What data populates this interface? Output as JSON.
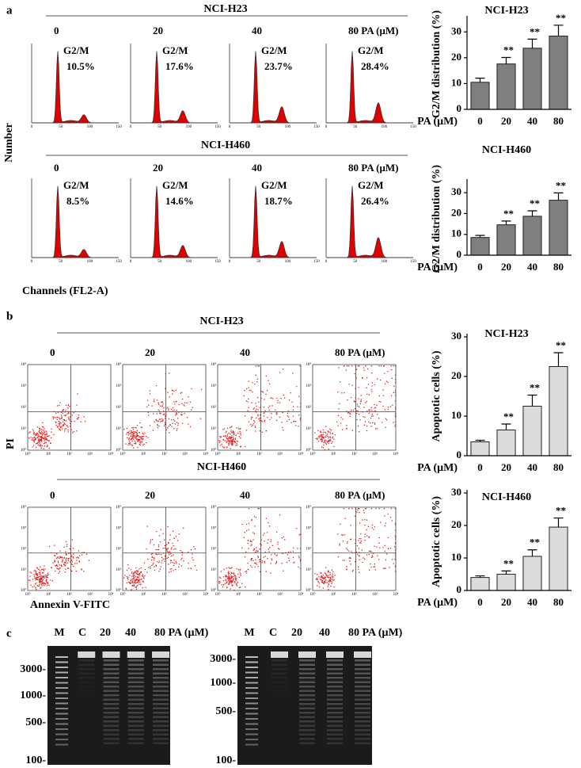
{
  "chart_data": [
    {
      "type": "bar",
      "title": "NCI-H23",
      "ylabel": "G2/M distribution (%)",
      "xlabel": "PA (μM)",
      "categories": [
        "0",
        "20",
        "40",
        "80"
      ],
      "values": [
        10.5,
        17.6,
        23.7,
        28.4
      ],
      "errors": [
        1.6,
        2.5,
        3.5,
        4.2
      ],
      "annotations": [
        null,
        "**",
        "**",
        "**"
      ],
      "color": "#7f7f7f",
      "ylim": [
        0,
        35
      ],
      "yticks": [
        0,
        10,
        20,
        30
      ]
    },
    {
      "type": "bar",
      "title": "NCI-H460",
      "ylabel": "G2/M distribution (%)",
      "xlabel": "PA (μM)",
      "categories": [
        "0",
        "20",
        "40",
        "80"
      ],
      "values": [
        8.5,
        14.6,
        18.7,
        26.4
      ],
      "errors": [
        1.0,
        1.8,
        2.6,
        3.5
      ],
      "annotations": [
        null,
        "**",
        "**",
        "**"
      ],
      "color": "#7f7f7f",
      "ylim": [
        0,
        35
      ],
      "yticks": [
        0,
        10,
        20,
        30
      ]
    },
    {
      "type": "bar",
      "title": "NCI-H23",
      "ylabel": "Apoptotic cells (%)",
      "xlabel": "PA (μM)",
      "categories": [
        "0",
        "20",
        "40",
        "80"
      ],
      "values": [
        3.5,
        6.5,
        12.5,
        22.5
      ],
      "errors": [
        0.4,
        1.5,
        2.8,
        3.5
      ],
      "annotations": [
        null,
        "**",
        "**",
        "**"
      ],
      "color": "#dcdcdc",
      "ylim": [
        0,
        30
      ],
      "yticks": [
        0,
        10,
        20,
        30
      ]
    },
    {
      "type": "bar",
      "title": "NCI-H460",
      "ylabel": "Apoptotic cells (%)",
      "xlabel": "PA (μM)",
      "categories": [
        "0",
        "20",
        "40",
        "80"
      ],
      "values": [
        4.0,
        5.0,
        10.5,
        19.5
      ],
      "errors": [
        0.5,
        1.0,
        2.0,
        2.8
      ],
      "annotations": [
        null,
        "**",
        "**",
        "**"
      ],
      "color": "#dcdcdc",
      "ylim": [
        0,
        30
      ],
      "yticks": [
        0,
        10,
        20,
        30
      ]
    }
  ],
  "panel_a": {
    "label": "a",
    "y_axis_label": "Number",
    "x_axis_label": "Channels (FL2-A)",
    "histogram_ticks": [
      "0",
      "50",
      "100",
      "150"
    ],
    "groups": [
      {
        "cell_line": "NCI-H23",
        "doses": [
          "0",
          "20",
          "40",
          "80 PA (μM)"
        ],
        "peaks": [
          {
            "label": "G2/M",
            "value": "10.5%"
          },
          {
            "label": "G2/M",
            "value": "17.6%"
          },
          {
            "label": "G2/M",
            "value": "23.7%"
          },
          {
            "label": "G2/M",
            "value": "28.4%"
          }
        ]
      },
      {
        "cell_line": "NCI-H460",
        "doses": [
          "0",
          "20",
          "40",
          "80 PA (μM)"
        ],
        "peaks": [
          {
            "label": "G2/M",
            "value": "8.5%"
          },
          {
            "label": "G2/M",
            "value": "14.6%"
          },
          {
            "label": "G2/M",
            "value": "18.7%"
          },
          {
            "label": "G2/M",
            "value": "26.4%"
          }
        ]
      }
    ]
  },
  "panel_b": {
    "label": "b",
    "y_axis_label": "PI",
    "x_axis_label": "Annexin V-FITC",
    "log_ticks": [
      "10⁰",
      "10¹",
      "10²",
      "10³",
      "10⁴"
    ],
    "groups": [
      {
        "cell_line": "NCI-H23",
        "doses": [
          "0",
          "20",
          "40",
          "80 PA (μM)"
        ]
      },
      {
        "cell_line": "NCI-H460",
        "doses": [
          "0",
          "20",
          "40",
          "80 PA (μM)"
        ]
      }
    ]
  },
  "panel_c": {
    "label": "c",
    "gels": [
      {
        "lanes": [
          "M",
          "C",
          "20",
          "40",
          "80 PA (μM)"
        ],
        "markers": [
          "3000-",
          "1000-",
          "500-",
          "100-"
        ]
      },
      {
        "lanes": [
          "M",
          "C",
          "20",
          "40",
          "80 PA (μM)"
        ],
        "markers": [
          "3000-",
          "1000-",
          "500-",
          "100-"
        ]
      }
    ]
  }
}
